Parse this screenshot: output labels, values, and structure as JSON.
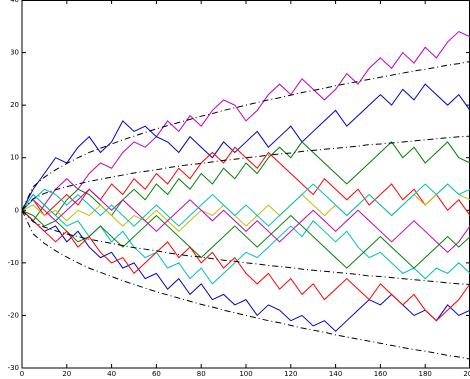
{
  "chart_data": {
    "type": "line",
    "x": [
      0,
      5,
      10,
      15,
      20,
      25,
      30,
      35,
      40,
      45,
      50,
      55,
      60,
      65,
      70,
      75,
      80,
      85,
      90,
      95,
      100,
      105,
      110,
      115,
      120,
      125,
      130,
      135,
      140,
      145,
      150,
      155,
      160,
      165,
      170,
      175,
      180,
      185,
      190,
      195,
      200
    ],
    "xlim": [
      0,
      200
    ],
    "xticks": [
      0,
      20,
      40,
      60,
      80,
      100,
      120,
      140,
      160,
      180,
      200
    ],
    "ylim": [
      -30,
      40
    ],
    "yticks": [
      -30,
      -20,
      -10,
      0,
      10,
      20,
      30,
      40
    ],
    "series": [
      {
        "color": "#bf00bf",
        "values": [
          0,
          3,
          1,
          4,
          6,
          4,
          7,
          9,
          8,
          11,
          13,
          12,
          14,
          17,
          15,
          18,
          16,
          19,
          21,
          20,
          17,
          19,
          22,
          24,
          22,
          25,
          23,
          21,
          23,
          26,
          24,
          27,
          29,
          27,
          30,
          28,
          31,
          29,
          32,
          34,
          33
        ]
      },
      {
        "color": "#0000cc",
        "values": [
          0,
          4,
          7,
          10,
          9,
          12,
          14,
          11,
          13,
          17,
          15,
          16,
          14,
          13,
          11,
          14,
          12,
          10,
          13,
          11,
          13,
          15,
          12,
          14,
          16,
          13,
          15,
          17,
          19,
          16,
          18,
          20,
          22,
          20,
          23,
          21,
          24,
          22,
          20,
          22,
          19
        ]
      },
      {
        "color": "#008000",
        "values": [
          0,
          -2,
          1,
          -1,
          2,
          4,
          3,
          1,
          -1,
          2,
          4,
          2,
          5,
          3,
          6,
          4,
          7,
          5,
          8,
          6,
          9,
          7,
          10,
          12,
          10,
          13,
          11,
          9,
          7,
          5,
          7,
          9,
          11,
          13,
          10,
          12,
          9,
          11,
          13,
          10,
          9
        ]
      },
      {
        "color": "#ff0000",
        "values": [
          0,
          2,
          -1,
          1,
          3,
          1,
          4,
          2,
          5,
          3,
          6,
          4,
          7,
          5,
          8,
          6,
          9,
          11,
          9,
          12,
          10,
          8,
          11,
          9,
          7,
          5,
          3,
          6,
          4,
          2,
          4,
          1,
          3,
          5,
          2,
          4,
          1,
          3,
          0,
          2,
          -1
        ]
      },
      {
        "color": "#0000cc",
        "values": [
          0,
          -2,
          -4,
          -3,
          -6,
          -4,
          -7,
          -9,
          -8,
          -11,
          -10,
          -13,
          -12,
          -15,
          -13,
          -16,
          -14,
          -17,
          -16,
          -18,
          -17,
          -20,
          -18,
          -19,
          -21,
          -20,
          -22,
          -21,
          -23,
          -21,
          -19,
          -17,
          -18,
          -16,
          -18,
          -20,
          -19,
          -21,
          -18,
          -20,
          -19
        ]
      },
      {
        "color": "#00bfbf",
        "values": [
          0,
          3,
          1,
          -1,
          -3,
          -2,
          -5,
          -3,
          -6,
          -4,
          -7,
          -9,
          -8,
          -11,
          -10,
          -13,
          -11,
          -14,
          -12,
          -10,
          -8,
          -9,
          -7,
          -5,
          -3,
          -5,
          -2,
          -4,
          -6,
          -4,
          -7,
          -9,
          -8,
          -10,
          -12,
          -11,
          -13,
          -11,
          -12,
          -10,
          -12
        ]
      },
      {
        "color": "#bfbf00",
        "values": [
          0,
          1,
          -1,
          0,
          -2,
          0,
          -1,
          1,
          -1,
          -3,
          -1,
          -2,
          0,
          -2,
          -4,
          -2,
          0,
          -1,
          1,
          -1,
          -3,
          -1,
          1,
          -1,
          1,
          3,
          1,
          -1,
          1,
          -1,
          1,
          3,
          1,
          -1,
          1,
          3,
          1,
          3,
          5,
          3,
          2
        ]
      },
      {
        "color": "#008000",
        "values": [
          0,
          -1,
          -3,
          -2,
          -4,
          -6,
          -5,
          -3,
          -5,
          -7,
          -5,
          -3,
          -1,
          -3,
          -5,
          -7,
          -9,
          -7,
          -5,
          -3,
          -5,
          -7,
          -5,
          -3,
          -1,
          -3,
          -5,
          -7,
          -9,
          -11,
          -9,
          -7,
          -5,
          -7,
          -9,
          -11,
          -9,
          -7,
          -5,
          -7,
          -5
        ]
      },
      {
        "color": "#ff0000",
        "values": [
          0,
          -2,
          -4,
          -6,
          -4,
          -7,
          -5,
          -8,
          -10,
          -9,
          -12,
          -10,
          -8,
          -6,
          -9,
          -7,
          -10,
          -8,
          -11,
          -9,
          -12,
          -14,
          -12,
          -15,
          -13,
          -16,
          -14,
          -17,
          -15,
          -13,
          -15,
          -17,
          -14,
          -16,
          -18,
          -16,
          -19,
          -21,
          -19,
          -17,
          -14
        ]
      },
      {
        "color": "#bf00bf",
        "values": [
          0,
          2,
          0,
          -2,
          0,
          2,
          4,
          2,
          0,
          2,
          0,
          -2,
          -4,
          -2,
          0,
          2,
          0,
          -2,
          0,
          -2,
          -4,
          -2,
          -4,
          -6,
          -4,
          -2,
          0,
          -2,
          -4,
          -2,
          0,
          -2,
          -4,
          -6,
          -4,
          -2,
          -4,
          -6,
          -8,
          -6,
          -3
        ]
      },
      {
        "color": "#00bfbf",
        "values": [
          0,
          2,
          4,
          3,
          1,
          3,
          1,
          -1,
          1,
          -1,
          -3,
          -1,
          1,
          -1,
          -3,
          -1,
          1,
          3,
          1,
          -1,
          1,
          -1,
          -3,
          -1,
          1,
          3,
          5,
          3,
          1,
          -1,
          1,
          3,
          1,
          -1,
          1,
          3,
          5,
          3,
          5,
          3,
          4
        ]
      },
      {
        "color": "#000000",
        "style": "dashdot",
        "values": [
          0,
          2.2,
          3.2,
          3.9,
          4.5,
          5,
          5.5,
          5.9,
          6.3,
          6.7,
          7.1,
          7.4,
          7.7,
          8.1,
          8.4,
          8.7,
          8.9,
          9.2,
          9.5,
          9.7,
          10,
          10.2,
          10.5,
          10.7,
          10.9,
          11.2,
          11.4,
          11.6,
          11.8,
          12,
          12.2,
          12.5,
          12.6,
          12.8,
          13,
          13.2,
          13.4,
          13.6,
          13.8,
          14,
          14.1
        ]
      },
      {
        "color": "#000000",
        "style": "dashdot",
        "values": [
          0,
          -2.2,
          -3.2,
          -3.9,
          -4.5,
          -5,
          -5.5,
          -5.9,
          -6.3,
          -6.7,
          -7.1,
          -7.4,
          -7.7,
          -8.1,
          -8.4,
          -8.7,
          -8.9,
          -9.2,
          -9.5,
          -9.7,
          -10,
          -10.2,
          -10.5,
          -10.7,
          -10.9,
          -11.2,
          -11.4,
          -11.6,
          -11.8,
          -12,
          -12.2,
          -12.5,
          -12.6,
          -12.8,
          -13,
          -13.2,
          -13.4,
          -13.6,
          -13.8,
          -14,
          -14.1
        ]
      },
      {
        "color": "#000000",
        "style": "dashdot",
        "values": [
          0,
          4.5,
          6.3,
          7.7,
          8.9,
          10,
          11,
          11.8,
          12.6,
          13.4,
          14.1,
          14.8,
          15.5,
          16.1,
          16.7,
          17.3,
          17.9,
          18.4,
          19,
          19.5,
          20,
          20.5,
          21,
          21.4,
          21.9,
          22.4,
          22.8,
          23.2,
          23.7,
          24.1,
          24.5,
          24.9,
          25.3,
          25.7,
          26.1,
          26.5,
          26.8,
          27.2,
          27.6,
          27.9,
          28.3
        ]
      },
      {
        "color": "#000000",
        "style": "dashdot",
        "values": [
          0,
          -4.5,
          -6.3,
          -7.7,
          -8.9,
          -10,
          -11,
          -11.8,
          -12.6,
          -13.4,
          -14.1,
          -14.8,
          -15.5,
          -16.1,
          -16.7,
          -17.3,
          -17.9,
          -18.4,
          -19,
          -19.5,
          -20,
          -20.5,
          -21,
          -21.4,
          -21.9,
          -22.4,
          -22.8,
          -23.2,
          -23.7,
          -24.1,
          -24.5,
          -24.9,
          -25.3,
          -25.7,
          -26.1,
          -26.5,
          -26.8,
          -27.2,
          -27.6,
          -27.9,
          -28.3
        ]
      }
    ]
  }
}
